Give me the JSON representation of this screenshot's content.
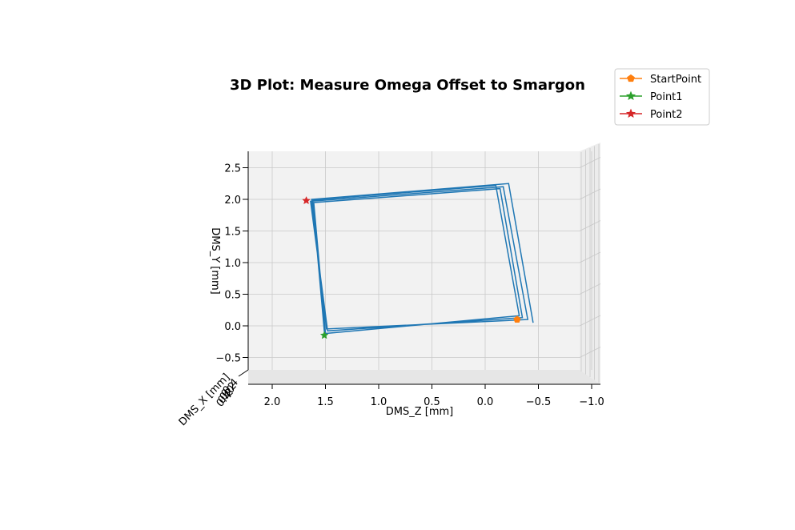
{
  "chart_data": {
    "type": "line",
    "projection": "3d",
    "title": "3D Plot: Measure Omega Offset to Smargon",
    "xlabel": "DMS_Z [mm]",
    "ylabel": "DMS_Y [mm]",
    "zlabel": "DMS_X [mm]",
    "grid": true,
    "legend_position": "top-right",
    "z_ticks": [
      "2.0",
      "1.5",
      "1.0",
      "0.5",
      "0.0",
      "−0.5",
      "−1.0"
    ],
    "z_tick_values": [
      2.0,
      1.5,
      1.0,
      0.5,
      0.0,
      -0.5,
      -1.0
    ],
    "y_ticks": [
      "−0.5",
      "0.0",
      "0.5",
      "1.0",
      "1.5",
      "2.0",
      "2.5"
    ],
    "y_tick_values": [
      -0.5,
      0.0,
      0.5,
      1.0,
      1.5,
      2.0,
      2.5
    ],
    "dms_x_tick_labels": [
      "0.4",
      "0.2",
      "0.0",
      "0.2",
      "0.4"
    ],
    "series": [
      {
        "name": "",
        "color": "#1f77b4",
        "marker": "none",
        "points": [
          {
            "z": -0.45,
            "y": 0.05
          },
          {
            "z": -0.22,
            "y": 2.25
          },
          {
            "z": 1.63,
            "y": 2.0
          },
          {
            "z": 1.49,
            "y": -0.05
          },
          {
            "z": -0.4,
            "y": 0.1
          },
          {
            "z": -0.17,
            "y": 2.2
          },
          {
            "z": 1.64,
            "y": 1.97
          },
          {
            "z": 1.48,
            "y": -0.08
          },
          {
            "z": -0.35,
            "y": 0.13
          },
          {
            "z": -0.14,
            "y": 2.17
          },
          {
            "z": 1.61,
            "y": 1.95
          },
          {
            "z": 1.5,
            "y": -0.12
          },
          {
            "z": -0.32,
            "y": 0.16
          },
          {
            "z": -0.1,
            "y": 2.22
          },
          {
            "z": 1.62,
            "y": 1.99
          },
          {
            "z": 1.51,
            "y": -0.1
          }
        ]
      },
      {
        "name": "StartPoint",
        "color": "#ff7f0e",
        "marker": "pentagon",
        "points": [
          {
            "z": -0.3,
            "y": 0.1
          }
        ]
      },
      {
        "name": "Point1",
        "color": "#2ca02c",
        "marker": "star",
        "points": [
          {
            "z": 1.51,
            "y": -0.15
          }
        ]
      },
      {
        "name": "Point2",
        "color": "#d62728",
        "marker": "star",
        "points": [
          {
            "z": 1.68,
            "y": 1.98
          }
        ]
      }
    ]
  }
}
